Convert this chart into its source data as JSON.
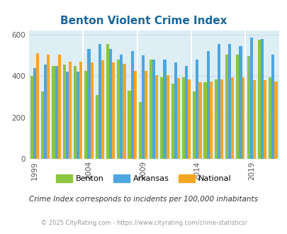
{
  "title": "Benton Violent Crime Index",
  "title_color": "#1a6699",
  "background_color": "#deeef5",
  "years": [
    1999,
    2000,
    2001,
    2002,
    2003,
    2004,
    2005,
    2006,
    2007,
    2008,
    2009,
    2010,
    2011,
    2012,
    2013,
    2014,
    2015,
    2016,
    2017,
    2018,
    2019,
    2020,
    2021
  ],
  "benton": [
    400,
    325,
    450,
    455,
    450,
    425,
    310,
    555,
    480,
    330,
    275,
    480,
    395,
    365,
    395,
    325,
    370,
    385,
    505,
    505,
    495,
    575,
    395
  ],
  "arkansas": [
    440,
    455,
    450,
    420,
    420,
    530,
    555,
    530,
    505,
    520,
    500,
    480,
    480,
    465,
    450,
    480,
    520,
    555,
    555,
    545,
    585,
    580,
    505
  ],
  "national": [
    510,
    505,
    505,
    470,
    470,
    465,
    475,
    465,
    460,
    425,
    425,
    405,
    405,
    390,
    385,
    370,
    375,
    385,
    395,
    395,
    380,
    380,
    375
  ],
  "benton_color": "#8dc63f",
  "arkansas_color": "#4da6e0",
  "national_color": "#f5a623",
  "ylim_min": 0,
  "ylim_max": 620,
  "yticks": [
    0,
    200,
    400,
    600
  ],
  "tick_years": [
    1999,
    2004,
    2009,
    2014,
    2019
  ],
  "subtitle": "Crime Index corresponds to incidents per 100,000 inhabitants",
  "footer": "© 2025 CityRating.com - https://www.cityrating.com/crime-statistics/",
  "subtitle_color": "#333333",
  "footer_color": "#999999",
  "grid_color": "#c8dde8",
  "divider_color": "#c0d8e0"
}
